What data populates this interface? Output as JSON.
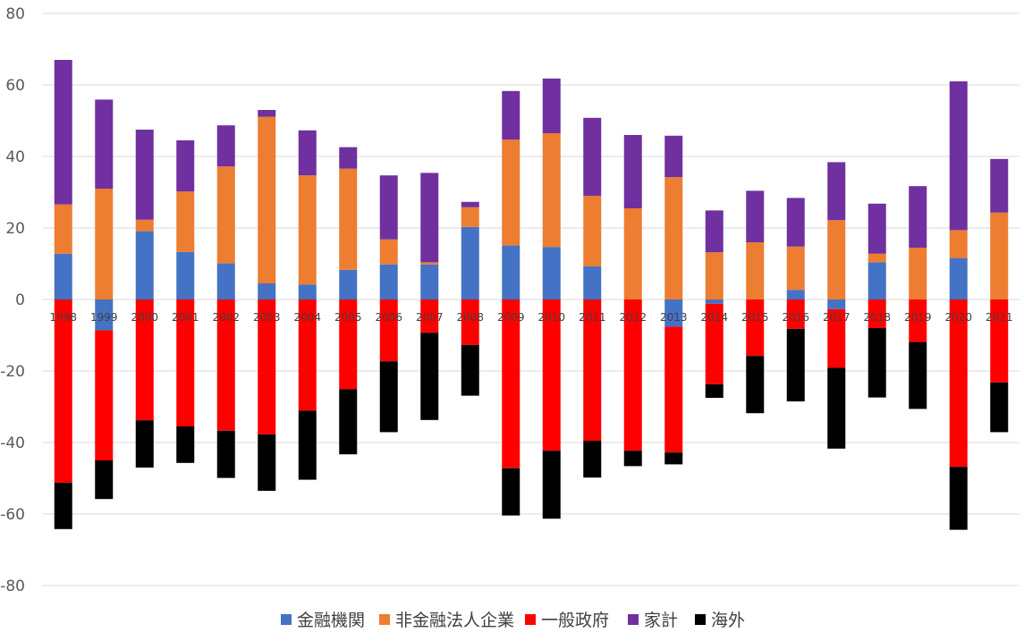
{
  "chart_data": {
    "type": "bar",
    "stacked": true,
    "title": "",
    "xlabel": "",
    "ylabel": "",
    "ylim": [
      -80,
      80
    ],
    "yticks": [
      80,
      60,
      40,
      20,
      0,
      -20,
      -40,
      -60,
      -80
    ],
    "grid": true,
    "legend_position": "bottom",
    "categories": [
      "1998",
      "1999",
      "2000",
      "2001",
      "2002",
      "2003",
      "2004",
      "2005",
      "2006",
      "2007",
      "2008",
      "2009",
      "2010",
      "2011",
      "2012",
      "2013",
      "2014",
      "2015",
      "2016",
      "2017",
      "2018",
      "2019",
      "2020",
      "2021"
    ],
    "series": [
      {
        "name": "金融機関",
        "color": "#4472C4",
        "values": [
          12.8,
          -8.6,
          19.1,
          13.3,
          10.1,
          4.5,
          4.2,
          8.3,
          9.8,
          9.8,
          20.3,
          15.1,
          14.7,
          9.3,
          0,
          -7.6,
          -1.2,
          0,
          2.7,
          -2.7,
          10.4,
          0,
          11.6,
          0
        ]
      },
      {
        "name": "非金融法人企業",
        "color": "#ED7D31",
        "values": [
          13.8,
          31.0,
          3.2,
          16.9,
          27.1,
          46.6,
          30.5,
          28.3,
          7.0,
          0.6,
          5.5,
          29.6,
          31.8,
          19.7,
          25.5,
          34.2,
          13.2,
          16.0,
          12.1,
          22.2,
          2.4,
          14.5,
          7.8,
          24.3
        ]
      },
      {
        "name": "一般政府",
        "color": "#FF0000",
        "values": [
          -51.2,
          -36.4,
          -33.8,
          -35.5,
          -36.7,
          -37.7,
          -31.1,
          -25.1,
          -17.3,
          -9.3,
          -12.7,
          -47.2,
          -42.3,
          -39.5,
          -42.3,
          -35.2,
          -22.5,
          -15.8,
          -8.2,
          -16.4,
          -8.0,
          -11.9,
          -46.8,
          -23.2
        ]
      },
      {
        "name": "家計",
        "color": "#7030A0",
        "values": [
          40.4,
          24.9,
          25.2,
          14.3,
          11.5,
          1.9,
          12.6,
          6.0,
          17.9,
          25.0,
          1.5,
          13.6,
          15.3,
          21.8,
          20.5,
          11.6,
          11.7,
          14.4,
          13.6,
          16.2,
          14.0,
          17.2,
          41.6,
          15.0
        ]
      },
      {
        "name": "海外",
        "color": "#000000",
        "values": [
          -13.0,
          -10.8,
          -13.2,
          -10.2,
          -13.2,
          -15.8,
          -19.3,
          -18.2,
          -19.8,
          -24.4,
          -14.2,
          -13.2,
          -19.0,
          -10.3,
          -4.3,
          -3.3,
          -3.8,
          -16.0,
          -20.3,
          -22.6,
          -19.4,
          -18.7,
          -17.6,
          -13.9
        ]
      }
    ]
  }
}
